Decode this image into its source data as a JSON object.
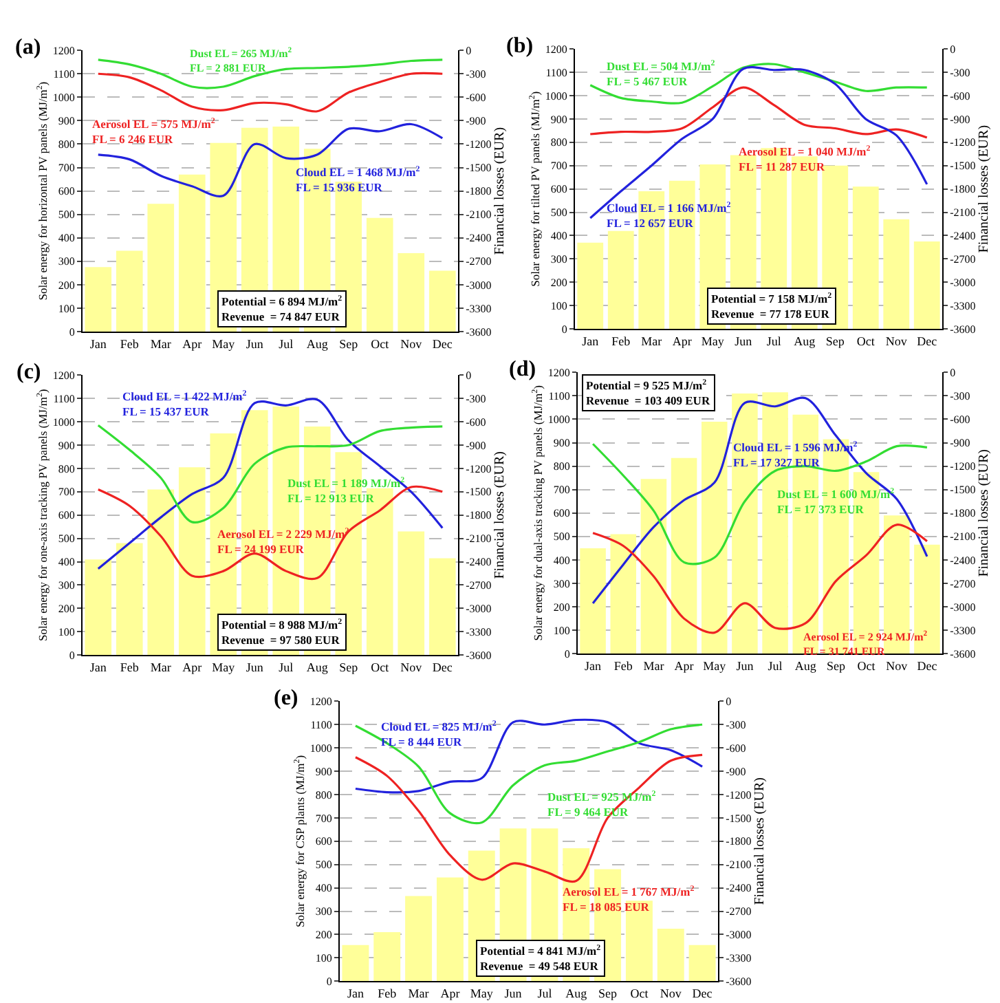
{
  "chart_data": [
    {
      "type": "bar",
      "title": "(a)",
      "ylabel": "Solar energy for horizontal PV panels (MJ/m$^{2}$)",
      "y2label": "Financial losses (EUR)",
      "categories": [
        "Jan",
        "Feb",
        "Mar",
        "Apr",
        "May",
        "Jun",
        "Jul",
        "Aug",
        "Sep",
        "Oct",
        "Nov",
        "Dec"
      ],
      "ylim": [
        0,
        1200
      ],
      "yticks": [
        0,
        100,
        200,
        300,
        400,
        500,
        600,
        700,
        800,
        900,
        1000,
        1100,
        1200
      ],
      "y2lim": [
        -3600,
        0
      ],
      "y2ticks": [
        -3600,
        -3300,
        -3000,
        -2700,
        -2400,
        -2100,
        -1800,
        -1500,
        -1200,
        -900,
        -600,
        -300,
        0
      ],
      "grid": "y",
      "series": [
        {
          "color": "#ffff99",
          "values": [
            275,
            345,
            545,
            670,
            805,
            870,
            875,
            780,
            640,
            485,
            335,
            260
          ]
        },
        {
          "type": "line",
          "axis": "y2",
          "color": "#33dd33",
          "values": [
            -120,
            -180,
            -300,
            -465,
            -465,
            -330,
            -240,
            -225,
            -210,
            -180,
            -135,
            -120
          ]
        },
        {
          "type": "line",
          "axis": "y2",
          "color": "#ee2222",
          "values": [
            -300,
            -345,
            -510,
            -720,
            -765,
            -675,
            -690,
            -780,
            -540,
            -405,
            -300,
            -300
          ]
        },
        {
          "type": "line",
          "axis": "y2",
          "color": "#2222dd",
          "values": [
            -1335,
            -1395,
            -1605,
            -1740,
            -1860,
            -1200,
            -1380,
            -1335,
            -1005,
            -1035,
            -945,
            -1125
          ]
        }
      ],
      "annotations": [
        "Dust EL = 265 MJ/m$^{2}$\nFL = 2 881 EUR",
        "Aerosol EL = 575 MJ/m$^{2}$\nFL = 6 246 EUR",
        "Cloud EL = 1 468 MJ/m$^{2}$\nFL = 15 936 EUR",
        "Potential = 6 894 MJ/m$^{2}$\nRevenue  = 74 847 EUR"
      ]
    },
    {
      "type": "bar",
      "title": "(b)",
      "ylabel": "Solar energy for tilted PV panels (MJ/m$^{2}$)",
      "y2label": "Financial losses (EUR)",
      "categories": [
        "Jan",
        "Feb",
        "Mar",
        "Apr",
        "May",
        "Jun",
        "Jul",
        "Aug",
        "Sep",
        "Oct",
        "Nov",
        "Dec"
      ],
      "ylim": [
        0,
        1200
      ],
      "yticks": [
        0,
        100,
        200,
        300,
        400,
        500,
        600,
        700,
        800,
        900,
        1000,
        1100,
        1200
      ],
      "y2lim": [
        -3600,
        0
      ],
      "y2ticks": [
        -3600,
        -3300,
        -3000,
        -2700,
        -2400,
        -2100,
        -1800,
        -1500,
        -1200,
        -900,
        -600,
        -300,
        0
      ],
      "grid": "y",
      "series": [
        {
          "color": "#ffff99",
          "values": [
            370,
            420,
            590,
            635,
            705,
            745,
            775,
            740,
            700,
            610,
            470,
            375
          ]
        },
        {
          "type": "line",
          "axis": "y2",
          "color": "#33dd33",
          "values": [
            -465,
            -630,
            -675,
            -690,
            -480,
            -240,
            -195,
            -300,
            -420,
            -540,
            -495,
            -495
          ]
        },
        {
          "type": "line",
          "axis": "y2",
          "color": "#ee2222",
          "values": [
            -1095,
            -1065,
            -1065,
            -1020,
            -750,
            -495,
            -720,
            -975,
            -1020,
            -1095,
            -1035,
            -1140
          ]
        },
        {
          "type": "line",
          "axis": "y2",
          "color": "#2222dd",
          "values": [
            -2175,
            -1830,
            -1500,
            -1155,
            -900,
            -255,
            -270,
            -270,
            -450,
            -900,
            -1110,
            -1740
          ]
        }
      ],
      "annotations": [
        "Dust EL = 504 MJ/m$^{2}$\nFL = 5 467 EUR",
        "Aerosol EL = 1 040 MJ/m$^{2}$\nFL = 11 287 EUR",
        "Cloud EL = 1 166 MJ/m$^{2}$\nFL = 12 657 EUR",
        "Potential = 7 158 MJ/m$^{2}$\nRevenue  = 77 178 EUR"
      ]
    },
    {
      "type": "bar",
      "title": "(c)",
      "ylabel": "Solar energy for one-axis tracking PV panels (MJ/m$^{2}$)",
      "y2label": "Financial losses (EUR)",
      "categories": [
        "Jan",
        "Feb",
        "Mar",
        "Apr",
        "May",
        "Jun",
        "Jul",
        "Aug",
        "Sep",
        "Oct",
        "Nov",
        "Dec"
      ],
      "ylim": [
        0,
        1200
      ],
      "yticks": [
        0,
        100,
        200,
        300,
        400,
        500,
        600,
        700,
        800,
        900,
        1000,
        1100,
        1200
      ],
      "y2lim": [
        -3600,
        0
      ],
      "y2ticks": [
        -3600,
        -3300,
        -3000,
        -2700,
        -2400,
        -2100,
        -1800,
        -1500,
        -1200,
        -900,
        -600,
        -300,
        0
      ],
      "grid": "y",
      "series": [
        {
          "color": "#ffff99",
          "values": [
            410,
            480,
            710,
            805,
            950,
            1050,
            1065,
            980,
            870,
            715,
            530,
            415
          ]
        },
        {
          "type": "line",
          "axis": "y2",
          "color": "#2222dd",
          "values": [
            -2490,
            -2160,
            -1830,
            -1530,
            -1320,
            -360,
            -390,
            -315,
            -840,
            -1170,
            -1500,
            -1965
          ]
        },
        {
          "type": "line",
          "axis": "y2",
          "color": "#33dd33",
          "values": [
            -645,
            -960,
            -1320,
            -1890,
            -1710,
            -1140,
            -930,
            -915,
            -900,
            -720,
            -675,
            -660
          ]
        },
        {
          "type": "line",
          "axis": "y2",
          "color": "#ee2222",
          "values": [
            -1470,
            -1680,
            -2070,
            -2580,
            -2520,
            -2295,
            -2520,
            -2610,
            -2010,
            -1740,
            -1440,
            -1500
          ]
        }
      ],
      "annotations": [
        "Cloud EL = 1 422 MJ/m$^{2}$\nFL = 15 437 EUR",
        "Dust EL = 1 189 MJ/m$^{2}$\nFL = 12 913 EUR",
        "Aerosol EL = 2 229 MJ/m$^{2}$\nFL = 24 199 EUR",
        "Potential = 8 988 MJ/m$^{2}$\nRevenue  = 97 580 EUR"
      ]
    },
    {
      "type": "bar",
      "title": "(d)",
      "ylabel": "Solar energy for dual-axis tracking PV panels (MJ/m$^{2}$)",
      "y2label": "Financial losses (EUR)",
      "categories": [
        "Jan",
        "Feb",
        "Mar",
        "Apr",
        "May",
        "Jun",
        "Jul",
        "Aug",
        "Sep",
        "Oct",
        "Nov",
        "Dec"
      ],
      "ylim": [
        0,
        1200
      ],
      "yticks": [
        0,
        100,
        200,
        300,
        400,
        500,
        600,
        700,
        800,
        900,
        1000,
        1100,
        1200
      ],
      "y2lim": [
        -3600,
        0
      ],
      "y2ticks": [
        -3600,
        -3300,
        -3000,
        -2700,
        -2400,
        -2100,
        -1800,
        -1500,
        -1200,
        -900,
        -600,
        -300,
        0
      ],
      "grid": "y",
      "series": [
        {
          "color": "#ffff99",
          "values": [
            450,
            510,
            745,
            835,
            990,
            1110,
            1115,
            1020,
            915,
            775,
            590,
            465
          ]
        },
        {
          "type": "line",
          "axis": "y2",
          "color": "#2222dd",
          "values": [
            -2955,
            -2460,
            -1980,
            -1635,
            -1410,
            -390,
            -435,
            -330,
            -810,
            -1290,
            -1620,
            -2355
          ]
        },
        {
          "type": "line",
          "axis": "y2",
          "color": "#33dd33",
          "values": [
            -915,
            -1320,
            -1770,
            -2430,
            -2370,
            -1650,
            -1260,
            -1200,
            -1260,
            -1140,
            -945,
            -960
          ]
        },
        {
          "type": "line",
          "axis": "y2",
          "color": "#ee2222",
          "values": [
            -2055,
            -2220,
            -2610,
            -3150,
            -3330,
            -2955,
            -3270,
            -3210,
            -2670,
            -2340,
            -1950,
            -2160
          ]
        }
      ],
      "annotations": [
        "Cloud EL = 1 596 MJ/m$^{2}$\nFL = 17 327 EUR",
        "Dust EL = 1 600 MJ/m$^{2}$\nFL = 17 373 EUR",
        "Aerosol EL = 2 924 MJ/m$^{2}$\nFL = 31 741 EUR",
        "Potential = 9 525 MJ/m$^{2}$\nRevenue  = 103 409 EUR"
      ]
    },
    {
      "type": "bar",
      "title": "(e)",
      "ylabel": "Solar energy for CSP plants (MJ/m$^{2}$)",
      "y2label": "Financial losses (EUR)",
      "categories": [
        "Jan",
        "Feb",
        "Mar",
        "Apr",
        "May",
        "Jun",
        "Jul",
        "Aug",
        "Sep",
        "Oct",
        "Nov",
        "Dec"
      ],
      "ylim": [
        0,
        1200
      ],
      "yticks": [
        0,
        100,
        200,
        300,
        400,
        500,
        600,
        700,
        800,
        900,
        1000,
        1100,
        1200
      ],
      "y2lim": [
        -3600,
        0
      ],
      "y2ticks": [
        -3600,
        -3300,
        -3000,
        -2700,
        -2400,
        -2100,
        -1800,
        -1500,
        -1200,
        -900,
        -600,
        -300,
        0
      ],
      "grid": "y",
      "series": [
        {
          "color": "#ffff99",
          "values": [
            155,
            210,
            365,
            445,
            560,
            655,
            655,
            570,
            480,
            345,
            225,
            155
          ]
        },
        {
          "type": "line",
          "axis": "y2",
          "color": "#2222dd",
          "values": [
            -1125,
            -1170,
            -1155,
            -1035,
            -990,
            -270,
            -300,
            -240,
            -270,
            -540,
            -630,
            -840
          ]
        },
        {
          "type": "line",
          "axis": "y2",
          "color": "#33dd33",
          "values": [
            -315,
            -540,
            -840,
            -1440,
            -1560,
            -1080,
            -825,
            -765,
            -645,
            -525,
            -360,
            -300
          ]
        },
        {
          "type": "line",
          "axis": "y2",
          "color": "#ee2222",
          "values": [
            -720,
            -960,
            -1410,
            -1980,
            -2295,
            -2085,
            -2190,
            -2310,
            -1500,
            -1110,
            -765,
            -690
          ]
        }
      ],
      "annotations": [
        "Cloud EL = 825 MJ/m$^{2}$\nFL = 8 444 EUR",
        "Dust EL = 925 MJ/m$^{2}$\nFL = 9 464 EUR",
        "Aerosol EL = 1 767 MJ/m$^{2}$\nFL = 18 085 EUR",
        "Potential = 4 841 MJ/m$^{2}$\nRevenue  = 49 548 EUR"
      ]
    }
  ]
}
